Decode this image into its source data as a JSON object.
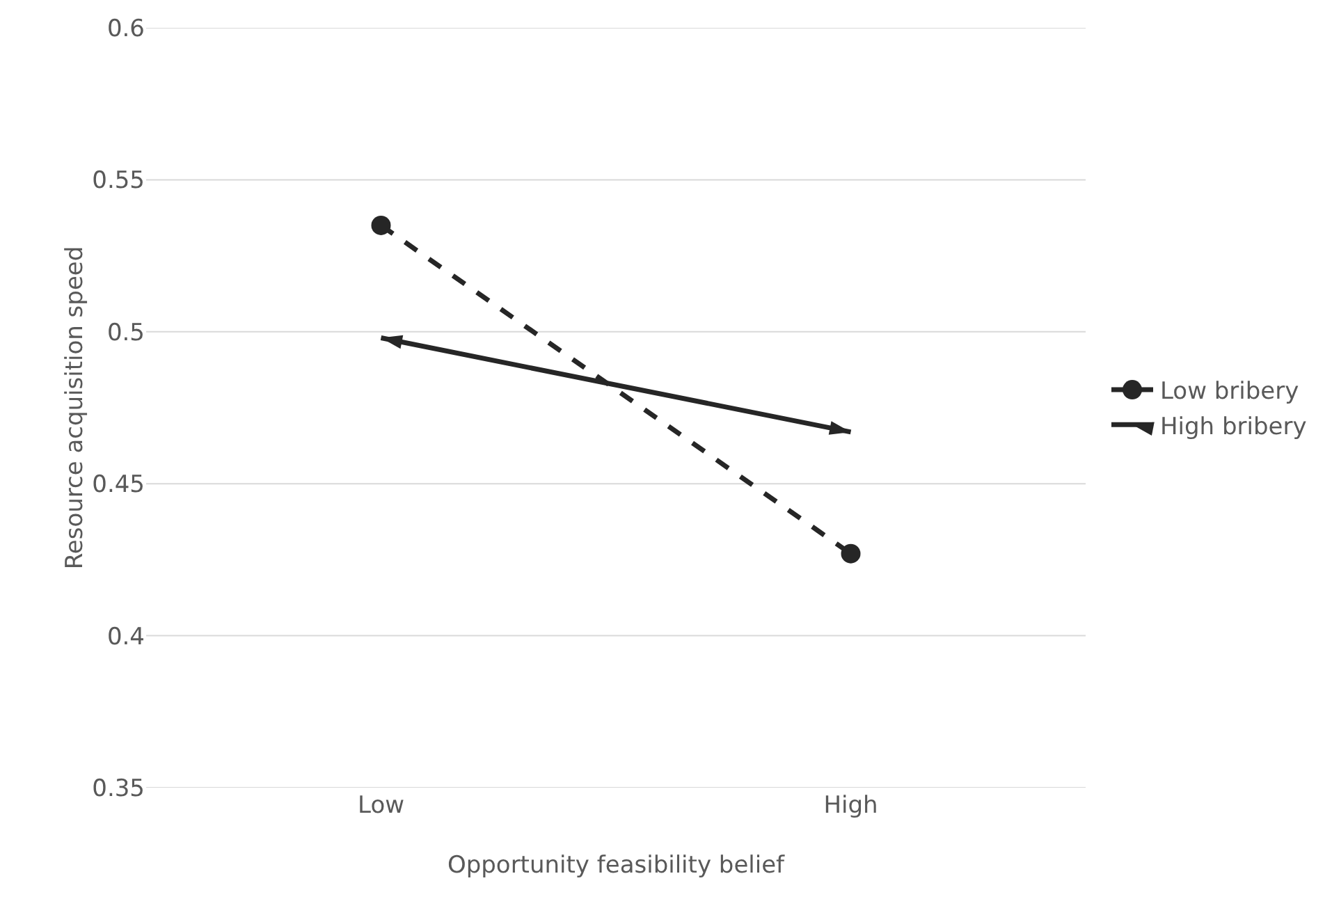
{
  "chart_data": {
    "type": "line",
    "xlabel": "Opportunity feasibility belief",
    "ylabel": "Resource acquisition speed",
    "categories": [
      "Low",
      "High"
    ],
    "series": [
      {
        "name": "Low bribery",
        "color": "#262626",
        "values": [
          0.535,
          0.427
        ],
        "marker": "circle",
        "line_style": "dashed"
      },
      {
        "name": "High bribery",
        "color": "#262626",
        "values": [
          0.498,
          0.467
        ],
        "marker": "triangle",
        "line_style": "solid"
      }
    ],
    "ylim": [
      0.35,
      0.6
    ],
    "yticks": [
      0.35,
      0.4,
      0.45,
      0.5,
      0.55,
      0.6
    ],
    "grid": "y",
    "legend": "right"
  }
}
